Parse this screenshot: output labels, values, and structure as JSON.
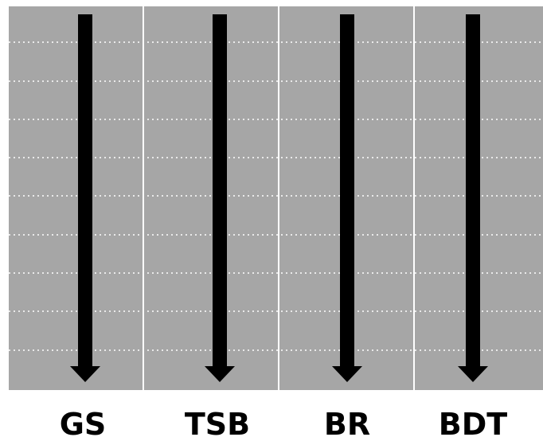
{
  "columns": [
    {
      "label": "GS"
    },
    {
      "label": "TSB"
    },
    {
      "label": "BR"
    },
    {
      "label": "BDT"
    }
  ],
  "colors": {
    "panel": "#a6a6a6",
    "divider": "#ffffff",
    "gridline": "#ffffff",
    "arrow": "#000000",
    "label": "#000000"
  },
  "arrow_direction": "down",
  "gridline_style": "dotted"
}
